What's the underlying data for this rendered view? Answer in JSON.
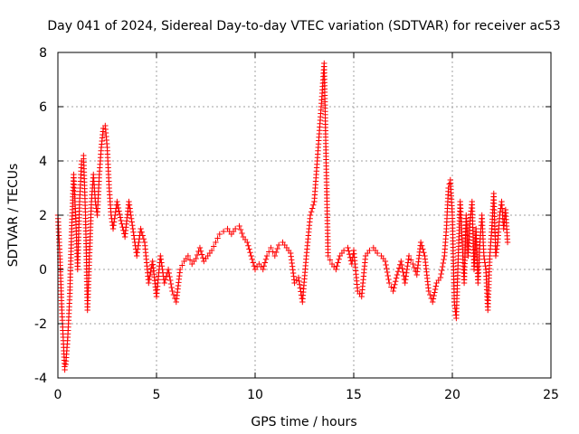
{
  "chart_data": {
    "type": "scatter",
    "title": "Day 041 of 2024, Sidereal Day-to-day VTEC variation (SDTVAR) for receiver ac53",
    "xlabel": "GPS time / hours",
    "ylabel": "SDTVAR / TECUs",
    "xlim": [
      0,
      25
    ],
    "ylim": [
      -4,
      8
    ],
    "xticks": [
      0,
      5,
      10,
      15,
      20,
      25
    ],
    "yticks": [
      -4,
      -2,
      0,
      2,
      4,
      6,
      8
    ],
    "grid": true,
    "marker": "+",
    "marker_color": "#ff0000",
    "series": [
      {
        "name": "SDTVAR",
        "x": [
          0.0,
          0.1,
          0.2,
          0.3,
          0.35,
          0.4,
          0.5,
          0.6,
          0.7,
          0.8,
          0.9,
          1.0,
          1.1,
          1.2,
          1.3,
          1.4,
          1.5,
          1.6,
          1.7,
          1.8,
          1.9,
          2.0,
          2.1,
          2.2,
          2.3,
          2.4,
          2.5,
          2.6,
          2.7,
          2.8,
          2.9,
          3.0,
          3.2,
          3.4,
          3.6,
          3.8,
          4.0,
          4.2,
          4.4,
          4.6,
          4.8,
          5.0,
          5.2,
          5.4,
          5.6,
          5.8,
          6.0,
          6.2,
          6.4,
          6.6,
          6.8,
          7.0,
          7.2,
          7.4,
          7.6,
          7.8,
          8.0,
          8.2,
          8.4,
          8.6,
          8.8,
          9.0,
          9.2,
          9.4,
          9.6,
          9.8,
          10.0,
          10.2,
          10.4,
          10.6,
          10.8,
          11.0,
          11.2,
          11.4,
          11.6,
          11.8,
          12.0,
          12.2,
          12.4,
          12.6,
          12.8,
          13.0,
          13.1,
          13.2,
          13.3,
          13.4,
          13.5,
          13.7,
          13.9,
          14.1,
          14.3,
          14.5,
          14.7,
          14.9,
          15.0,
          15.2,
          15.4,
          15.6,
          15.8,
          16.0,
          16.2,
          16.4,
          16.6,
          16.8,
          17.0,
          17.2,
          17.4,
          17.6,
          17.8,
          18.0,
          18.2,
          18.4,
          18.6,
          18.8,
          19.0,
          19.2,
          19.4,
          19.6,
          19.7,
          19.8,
          19.9,
          20.0,
          20.1,
          20.2,
          20.3,
          20.4,
          20.5,
          20.6,
          20.7,
          20.8,
          20.9,
          21.0,
          21.1,
          21.2,
          21.3,
          21.4,
          21.5,
          21.6,
          21.7,
          21.8,
          21.9,
          22.0,
          22.1,
          22.2,
          22.3,
          22.4,
          22.5,
          22.6,
          22.7,
          22.8
        ],
        "y": [
          2.0,
          0.5,
          -1.5,
          -3.0,
          -3.7,
          -3.5,
          -2.5,
          -1.0,
          1.5,
          3.5,
          2.0,
          0.0,
          2.5,
          4.0,
          4.2,
          2.0,
          -1.5,
          0.5,
          2.5,
          3.5,
          2.5,
          2.0,
          3.5,
          4.5,
          5.2,
          5.3,
          4.5,
          3.0,
          2.0,
          1.5,
          2.0,
          2.5,
          1.8,
          1.2,
          2.5,
          1.5,
          0.5,
          1.5,
          1.0,
          -0.5,
          0.3,
          -1.0,
          0.5,
          -0.5,
          0.0,
          -0.8,
          -1.2,
          0.0,
          0.3,
          0.5,
          0.2,
          0.4,
          0.8,
          0.3,
          0.5,
          0.7,
          1.0,
          1.3,
          1.4,
          1.5,
          1.3,
          1.5,
          1.6,
          1.2,
          1.0,
          0.5,
          0.0,
          0.2,
          0.0,
          0.5,
          0.8,
          0.5,
          0.9,
          1.0,
          0.8,
          0.6,
          -0.5,
          -0.3,
          -1.2,
          0.5,
          2.0,
          2.5,
          3.5,
          4.5,
          5.5,
          6.5,
          7.6,
          0.5,
          0.2,
          0.0,
          0.5,
          0.7,
          0.8,
          0.2,
          0.7,
          -0.8,
          -1.0,
          0.5,
          0.7,
          0.8,
          0.6,
          0.5,
          0.3,
          -0.5,
          -0.8,
          -0.2,
          0.3,
          -0.5,
          0.5,
          0.2,
          -0.2,
          1.0,
          0.5,
          -0.8,
          -1.2,
          -0.5,
          -0.3,
          0.5,
          1.5,
          3.0,
          3.3,
          2.0,
          -1.2,
          -1.8,
          0.5,
          2.5,
          1.0,
          -0.5,
          2.0,
          0.5,
          1.8,
          2.5,
          0.0,
          1.5,
          -0.5,
          1.0,
          2.0,
          0.5,
          0.0,
          -1.5,
          0.5,
          1.5,
          2.8,
          0.5,
          1.0,
          2.0,
          2.5,
          1.5,
          2.2,
          1.0
        ]
      }
    ]
  }
}
